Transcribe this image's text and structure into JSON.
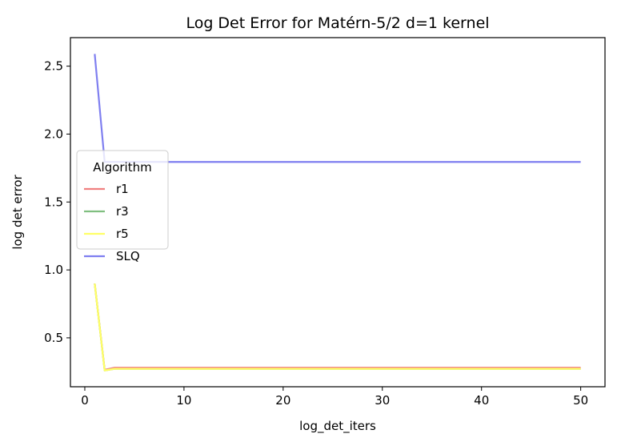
{
  "chart_data": {
    "type": "line",
    "title": "Log Det Error for Matérn-5/2 d=1 kernel",
    "xlabel": "log_det_iters",
    "ylabel": "log det error",
    "xlim": [
      -1.45,
      52.45
    ],
    "ylim": [
      0.14,
      2.71
    ],
    "xticks": [
      0,
      10,
      20,
      30,
      40,
      50
    ],
    "xtick_labels": [
      "0",
      "10",
      "20",
      "30",
      "40",
      "50"
    ],
    "yticks": [
      0.5,
      1.0,
      1.5,
      2.0,
      2.5
    ],
    "ytick_labels": [
      "0.5",
      "1.0",
      "1.5",
      "2.0",
      "2.5"
    ],
    "grid": false,
    "legend": {
      "title": "Algorithm",
      "placement": "center-left"
    },
    "x": [
      1,
      2,
      3,
      4,
      5,
      6,
      7,
      8,
      9,
      10,
      11,
      12,
      13,
      14,
      15,
      16,
      17,
      18,
      19,
      20,
      21,
      22,
      23,
      24,
      25,
      26,
      27,
      28,
      29,
      30,
      31,
      32,
      33,
      34,
      35,
      36,
      37,
      38,
      39,
      40,
      41,
      42,
      43,
      44,
      45,
      46,
      47,
      48,
      49,
      50
    ],
    "series": [
      {
        "name": "r1",
        "color": "#f08080",
        "values": [
          0.9,
          0.265,
          0.28,
          0.28,
          0.28,
          0.28,
          0.28,
          0.28,
          0.28,
          0.28,
          0.28,
          0.28,
          0.28,
          0.28,
          0.28,
          0.28,
          0.28,
          0.28,
          0.28,
          0.28,
          0.28,
          0.28,
          0.28,
          0.28,
          0.28,
          0.28,
          0.28,
          0.28,
          0.28,
          0.28,
          0.28,
          0.28,
          0.28,
          0.28,
          0.28,
          0.28,
          0.28,
          0.28,
          0.28,
          0.28,
          0.28,
          0.28,
          0.28,
          0.28,
          0.28,
          0.28,
          0.28,
          0.28,
          0.28,
          0.28
        ]
      },
      {
        "name": "r3",
        "color": "#80bf80",
        "values": [
          0.9,
          0.26,
          0.272,
          0.272,
          0.272,
          0.272,
          0.272,
          0.272,
          0.272,
          0.272,
          0.272,
          0.272,
          0.272,
          0.272,
          0.272,
          0.272,
          0.272,
          0.272,
          0.272,
          0.272,
          0.272,
          0.272,
          0.272,
          0.272,
          0.272,
          0.272,
          0.272,
          0.272,
          0.272,
          0.272,
          0.272,
          0.272,
          0.272,
          0.272,
          0.272,
          0.272,
          0.272,
          0.272,
          0.272,
          0.272,
          0.272,
          0.272,
          0.272,
          0.272,
          0.272,
          0.272,
          0.272,
          0.272,
          0.272,
          0.272
        ]
      },
      {
        "name": "r5",
        "color": "#ffff66",
        "values": [
          0.9,
          0.26,
          0.272,
          0.272,
          0.272,
          0.272,
          0.272,
          0.272,
          0.272,
          0.272,
          0.272,
          0.272,
          0.272,
          0.272,
          0.272,
          0.272,
          0.272,
          0.272,
          0.272,
          0.272,
          0.272,
          0.272,
          0.272,
          0.272,
          0.272,
          0.272,
          0.272,
          0.272,
          0.272,
          0.272,
          0.272,
          0.272,
          0.272,
          0.272,
          0.272,
          0.272,
          0.272,
          0.272,
          0.272,
          0.272,
          0.272,
          0.272,
          0.272,
          0.272,
          0.272,
          0.272,
          0.272,
          0.272,
          0.272,
          0.272
        ]
      },
      {
        "name": "SLQ",
        "color": "#7f7ff0",
        "values": [
          2.59,
          1.795,
          1.795,
          1.795,
          1.795,
          1.795,
          1.795,
          1.795,
          1.795,
          1.795,
          1.795,
          1.795,
          1.795,
          1.795,
          1.795,
          1.795,
          1.795,
          1.795,
          1.795,
          1.795,
          1.795,
          1.795,
          1.795,
          1.795,
          1.795,
          1.795,
          1.795,
          1.795,
          1.795,
          1.795,
          1.795,
          1.795,
          1.795,
          1.795,
          1.795,
          1.795,
          1.795,
          1.795,
          1.795,
          1.795,
          1.795,
          1.795,
          1.795,
          1.795,
          1.795,
          1.795,
          1.795,
          1.795,
          1.795,
          1.795
        ]
      }
    ]
  }
}
